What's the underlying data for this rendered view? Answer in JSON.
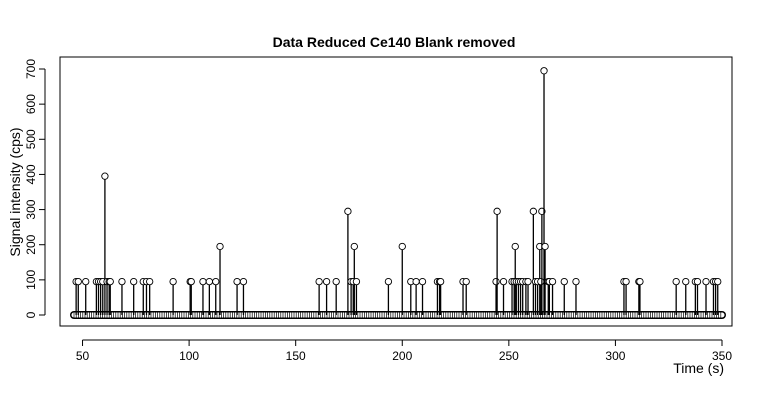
{
  "chart_data": {
    "type": "scatter",
    "style": "histogram-lines-with-open-circles",
    "title": "Data Reduced Ce140 Blank removed",
    "xlabel": "Time (s)",
    "ylabel": "Signal intensity (cps)",
    "xlim": [
      46,
      350
    ],
    "ylim": [
      0,
      700
    ],
    "x_ticks": [
      50,
      100,
      150,
      200,
      250,
      300,
      350
    ],
    "y_ticks": [
      0,
      100,
      200,
      300,
      400,
      500,
      600,
      700
    ],
    "baseline_value": 0,
    "grid": false,
    "legend": "none",
    "points": [
      {
        "x": 47.0,
        "y": 95
      },
      {
        "x": 48.0,
        "y": 95
      },
      {
        "x": 51.5,
        "y": 95
      },
      {
        "x": 56.5,
        "y": 95
      },
      {
        "x": 57.5,
        "y": 95
      },
      {
        "x": 58.5,
        "y": 95
      },
      {
        "x": 59.5,
        "y": 95
      },
      {
        "x": 60.5,
        "y": 395
      },
      {
        "x": 61.5,
        "y": 95
      },
      {
        "x": 62.5,
        "y": 95
      },
      {
        "x": 63.0,
        "y": 95
      },
      {
        "x": 68.5,
        "y": 95
      },
      {
        "x": 74.0,
        "y": 95
      },
      {
        "x": 78.5,
        "y": 95
      },
      {
        "x": 80.0,
        "y": 95
      },
      {
        "x": 81.5,
        "y": 95
      },
      {
        "x": 92.5,
        "y": 95
      },
      {
        "x": 100.5,
        "y": 95
      },
      {
        "x": 101.0,
        "y": 95
      },
      {
        "x": 106.5,
        "y": 95
      },
      {
        "x": 109.5,
        "y": 95
      },
      {
        "x": 112.5,
        "y": 95
      },
      {
        "x": 114.5,
        "y": 195
      },
      {
        "x": 122.5,
        "y": 95
      },
      {
        "x": 125.5,
        "y": 95
      },
      {
        "x": 161.0,
        "y": 95
      },
      {
        "x": 164.5,
        "y": 95
      },
      {
        "x": 169.0,
        "y": 95
      },
      {
        "x": 174.5,
        "y": 295
      },
      {
        "x": 176.0,
        "y": 95
      },
      {
        "x": 177.0,
        "y": 95
      },
      {
        "x": 177.5,
        "y": 195
      },
      {
        "x": 178.5,
        "y": 95
      },
      {
        "x": 193.5,
        "y": 95
      },
      {
        "x": 200.0,
        "y": 195
      },
      {
        "x": 204.0,
        "y": 95
      },
      {
        "x": 206.5,
        "y": 95
      },
      {
        "x": 209.5,
        "y": 95
      },
      {
        "x": 216.5,
        "y": 95
      },
      {
        "x": 217.5,
        "y": 95
      },
      {
        "x": 218.0,
        "y": 95
      },
      {
        "x": 228.5,
        "y": 95
      },
      {
        "x": 230.0,
        "y": 95
      },
      {
        "x": 244.0,
        "y": 95
      },
      {
        "x": 244.5,
        "y": 295
      },
      {
        "x": 247.5,
        "y": 95
      },
      {
        "x": 251.5,
        "y": 95
      },
      {
        "x": 252.5,
        "y": 95
      },
      {
        "x": 253.0,
        "y": 195
      },
      {
        "x": 253.5,
        "y": 95
      },
      {
        "x": 254.5,
        "y": 95
      },
      {
        "x": 255.5,
        "y": 95
      },
      {
        "x": 256.5,
        "y": 95
      },
      {
        "x": 258.0,
        "y": 95
      },
      {
        "x": 259.0,
        "y": 95
      },
      {
        "x": 261.5,
        "y": 295
      },
      {
        "x": 262.5,
        "y": 95
      },
      {
        "x": 263.5,
        "y": 95
      },
      {
        "x": 264.5,
        "y": 195
      },
      {
        "x": 265.0,
        "y": 95
      },
      {
        "x": 265.5,
        "y": 295
      },
      {
        "x": 266.5,
        "y": 695
      },
      {
        "x": 267.0,
        "y": 195
      },
      {
        "x": 268.5,
        "y": 95
      },
      {
        "x": 269.0,
        "y": 95
      },
      {
        "x": 270.5,
        "y": 95
      },
      {
        "x": 276.0,
        "y": 95
      },
      {
        "x": 281.5,
        "y": 95
      },
      {
        "x": 304.0,
        "y": 95
      },
      {
        "x": 305.0,
        "y": 95
      },
      {
        "x": 311.0,
        "y": 95
      },
      {
        "x": 311.5,
        "y": 95
      },
      {
        "x": 328.5,
        "y": 95
      },
      {
        "x": 333.0,
        "y": 95
      },
      {
        "x": 337.5,
        "y": 95
      },
      {
        "x": 338.5,
        "y": 95
      },
      {
        "x": 342.5,
        "y": 95
      },
      {
        "x": 346.0,
        "y": 95
      },
      {
        "x": 347.0,
        "y": 95
      },
      {
        "x": 348.0,
        "y": 95
      }
    ]
  }
}
